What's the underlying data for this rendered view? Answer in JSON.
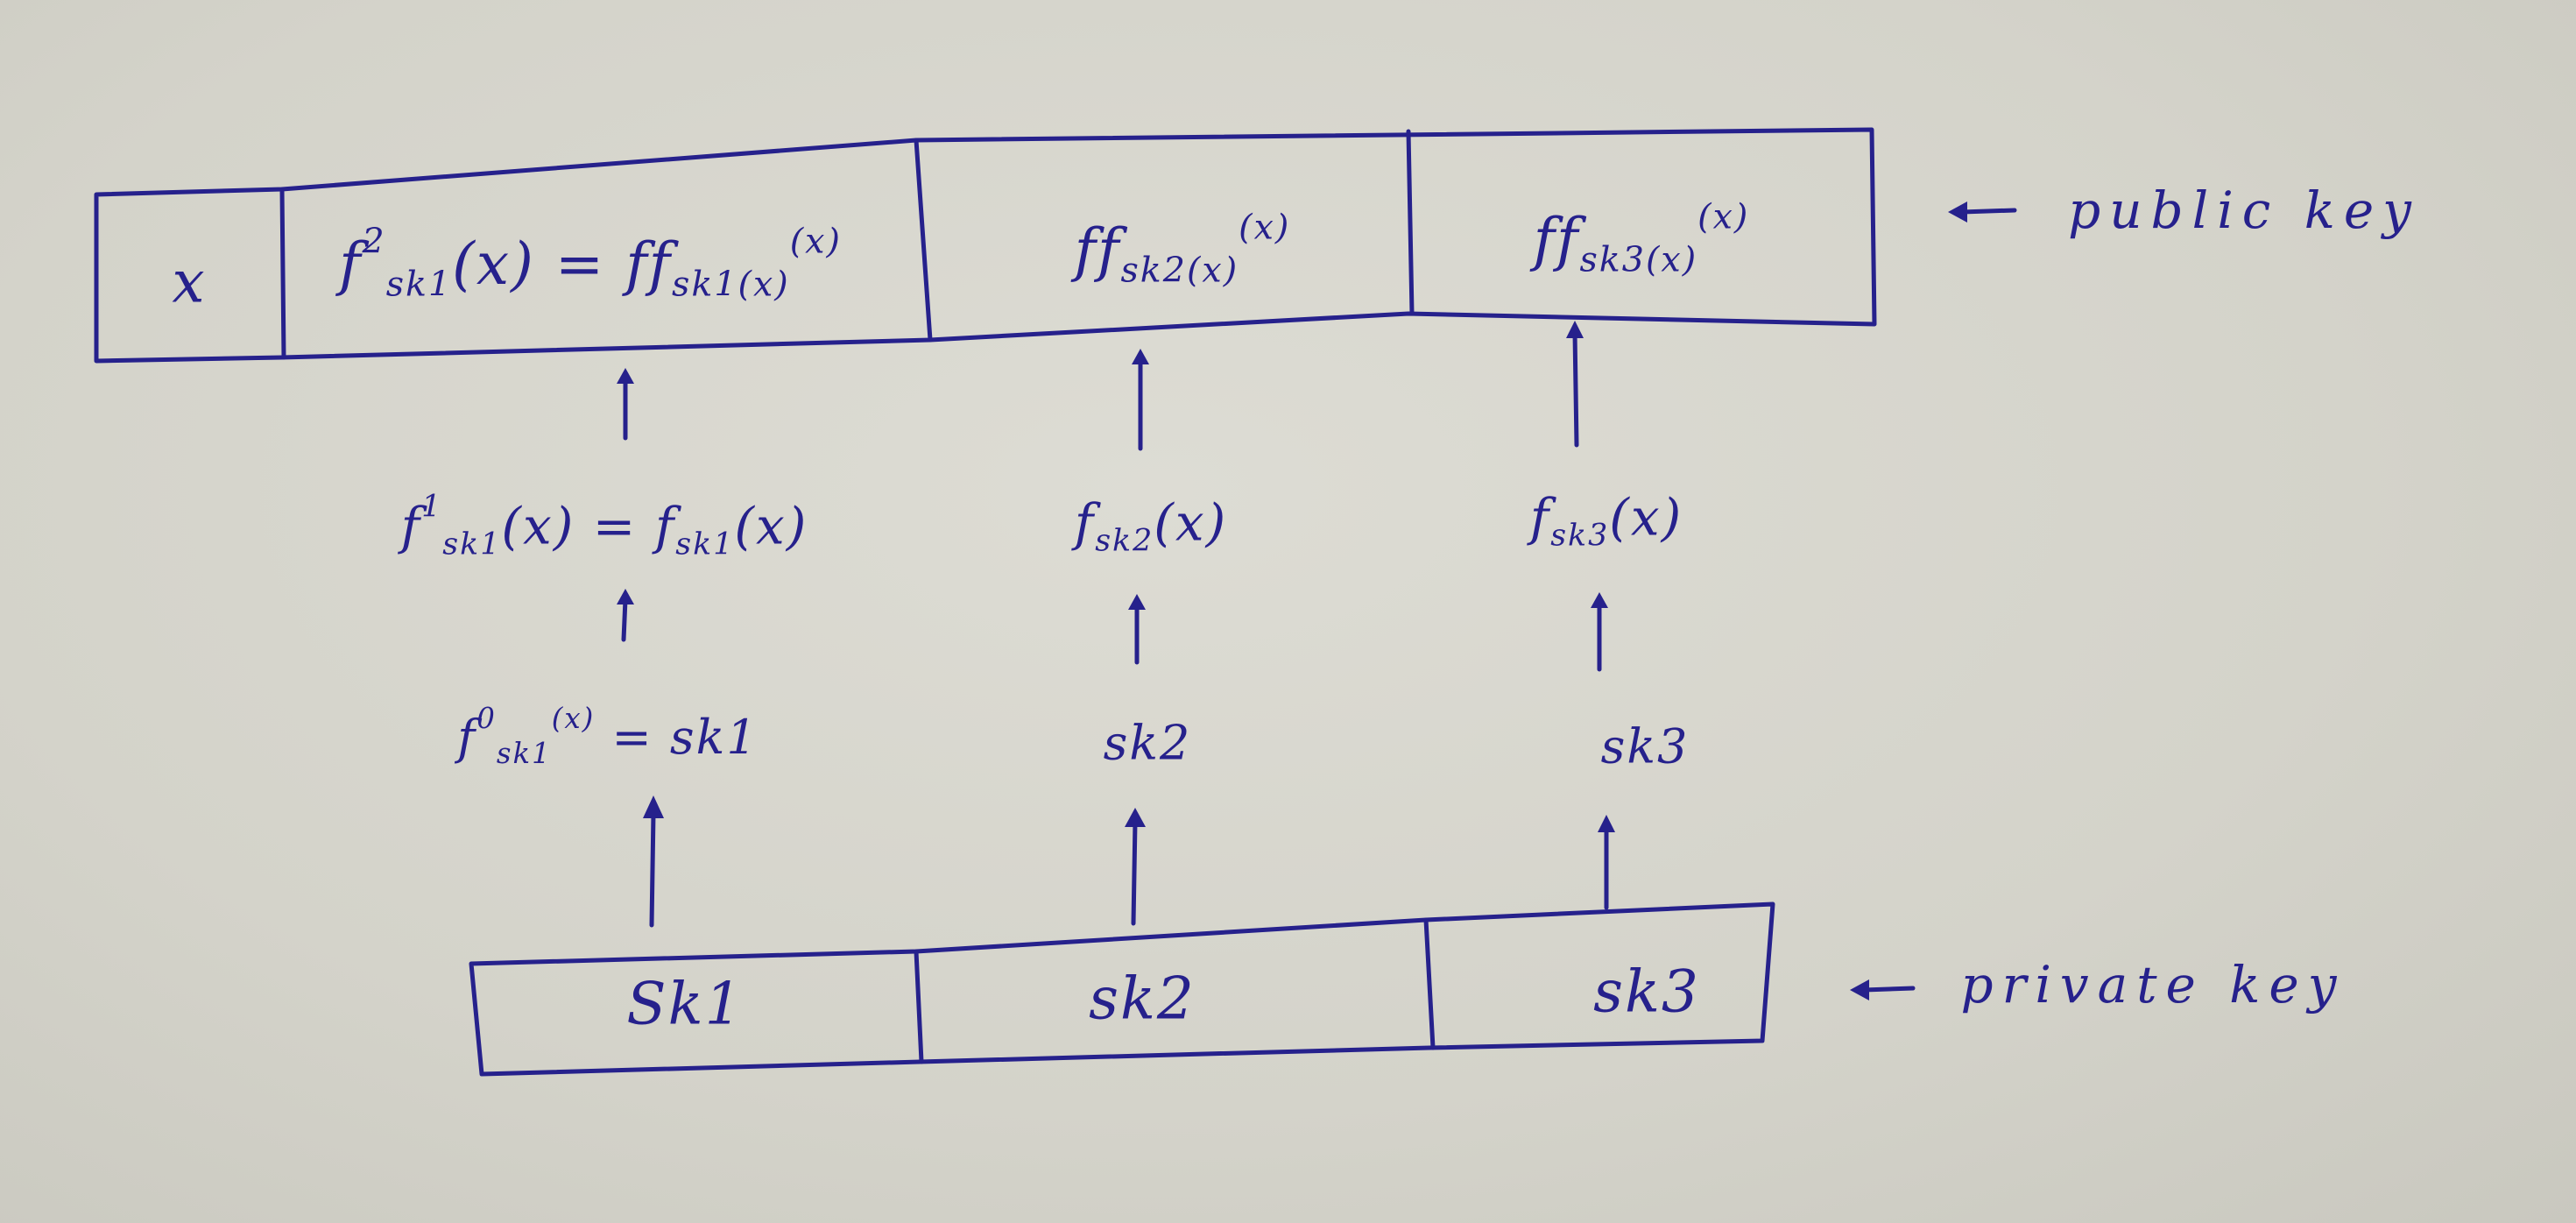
{
  "public_key": {
    "x_cell": "x",
    "cells": [
      {
        "lhs_f": "f",
        "lhs_sup": "2",
        "lhs_sub": "sk1",
        "lhs_arg": "(x)",
        "eq": "=",
        "rhs_f": "ff",
        "rhs_sub": "sk1(x)",
        "rhs_arg": "(x)"
      },
      {
        "rhs_f": "ff",
        "rhs_sub": "sk2(x)",
        "rhs_arg": "(x)"
      },
      {
        "rhs_f": "ff",
        "rhs_sub": "sk3(x)",
        "rhs_arg": "(x)"
      }
    ],
    "label": "public key"
  },
  "middle_level": [
    {
      "lhs_f": "f",
      "lhs_sup": "1",
      "lhs_sub": "sk1",
      "lhs_arg": "(x)",
      "eq": "=",
      "rhs_f": "f",
      "rhs_sub": "sk1",
      "rhs_arg": "(x)"
    },
    {
      "rhs_f": "f",
      "rhs_sub": "sk2",
      "rhs_arg": "(x)"
    },
    {
      "rhs_f": "f",
      "rhs_sub": "sk3",
      "rhs_arg": "(x)"
    }
  ],
  "base_level": [
    {
      "lhs_f": "f",
      "lhs_sup": "0",
      "lhs_sub": "sk1",
      "lhs_arg": "(x)",
      "eq": "=",
      "rhs": "sk1"
    },
    {
      "rhs": "sk2"
    },
    {
      "rhs": "sk3"
    }
  ],
  "private_key": {
    "cells": [
      "Sk1",
      "sk2",
      "sk3"
    ],
    "label": "private key"
  }
}
